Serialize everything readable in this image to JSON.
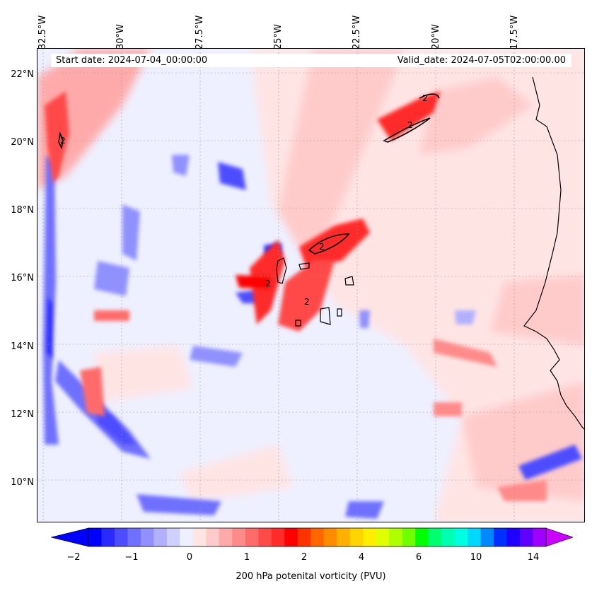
{
  "header": {
    "start_date": "Start date: 2024-07-04_00:00:00",
    "valid_date": "Valid_date: 2024-07-05T02:00:00.00"
  },
  "map": {
    "longitude_labels": [
      "32.5°W",
      "30°W",
      "27.5°W",
      "25°W",
      "22.5°W",
      "20°W",
      "17.5°W"
    ],
    "latitude_labels": [
      "22°N",
      "20°N",
      "18°N",
      "16°N",
      "14°N",
      "12°N",
      "10°N"
    ],
    "contour_label": "2",
    "extent": {
      "lon_min": -32.9,
      "lon_max": -15.5,
      "lat_min": 8.9,
      "lat_max": 22.8
    }
  },
  "colorbar": {
    "tick_labels": [
      "−2",
      "−1",
      "0",
      "1",
      "2",
      "4",
      "6",
      "10",
      "14"
    ],
    "label": "200 hPa potenital vorticity (PVU)",
    "colors": [
      "#0000ff",
      "#2a2aff",
      "#4d4dff",
      "#7070ff",
      "#9090ff",
      "#b0b0ff",
      "#d0d0ff",
      "#eef0ff",
      "#ffe4e4",
      "#ffcaca",
      "#ffaaaa",
      "#ff8a8a",
      "#ff6a6a",
      "#ff4a4a",
      "#ff2a2a",
      "#ff0000",
      "#ff3300",
      "#ff6600",
      "#ff8c00",
      "#ffb000",
      "#ffd400",
      "#ffee00",
      "#e0ff00",
      "#b0ff00",
      "#70ff00",
      "#00ff00",
      "#00ff70",
      "#00ffb0",
      "#00ffe0",
      "#00d8ff",
      "#0088ff",
      "#0030ff",
      "#2000ff",
      "#6000ff",
      "#a000ff"
    ],
    "extend_min_color": "#0000ff",
    "extend_max_color": "#cc00ff"
  }
}
